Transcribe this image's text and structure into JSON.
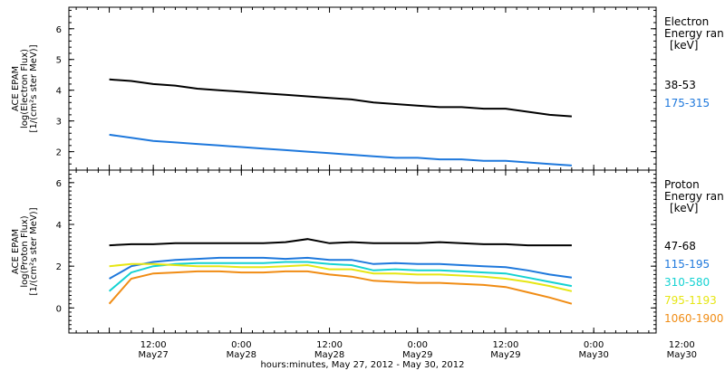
{
  "chart_data": [
    {
      "type": "line",
      "ylabel_lines": [
        "ACE EPAM",
        "log(Electron Flux)",
        "[1/(cm²s ster MeV)]"
      ],
      "ylim": [
        1.4,
        6.7
      ],
      "yticks": [
        2,
        3,
        4,
        5,
        6
      ],
      "legend_title": [
        "Electron",
        "Energy ran",
        "[keV]"
      ],
      "series": [
        {
          "name": "38-53",
          "color": "#000000",
          "x": [
            0,
            6,
            12,
            18,
            24,
            30,
            36,
            42,
            48,
            54,
            60,
            66,
            72,
            78,
            84,
            90,
            96,
            102,
            108,
            114,
            120,
            126
          ],
          "y": [
            4.35,
            4.3,
            4.2,
            4.15,
            4.05,
            4.0,
            3.95,
            3.9,
            3.85,
            3.8,
            3.75,
            3.7,
            3.6,
            3.55,
            3.5,
            3.45,
            3.45,
            3.4,
            3.4,
            3.3,
            3.2,
            3.15
          ]
        },
        {
          "name": "175-315",
          "color": "#1e78dc",
          "x": [
            0,
            6,
            12,
            18,
            24,
            30,
            36,
            42,
            48,
            54,
            60,
            66,
            72,
            78,
            84,
            90,
            96,
            102,
            108,
            114,
            120,
            126
          ],
          "y": [
            2.55,
            2.45,
            2.35,
            2.3,
            2.25,
            2.2,
            2.15,
            2.1,
            2.05,
            2.0,
            1.95,
            1.9,
            1.85,
            1.8,
            1.8,
            1.75,
            1.75,
            1.7,
            1.7,
            1.65,
            1.6,
            1.55
          ]
        }
      ]
    },
    {
      "type": "line",
      "ylabel_lines": [
        "ACE EPAM",
        "log(Proton Flux)",
        "[1/(cm²s ster MeV)]"
      ],
      "ylim": [
        -1.2,
        6.6
      ],
      "yticks": [
        0,
        2,
        4,
        6
      ],
      "legend_title": [
        "Proton",
        "Energy ran",
        "[keV]"
      ],
      "series": [
        {
          "name": "47-68",
          "color": "#000000",
          "x": [
            0,
            6,
            12,
            18,
            24,
            30,
            36,
            42,
            48,
            54,
            60,
            66,
            72,
            78,
            84,
            90,
            96,
            102,
            108,
            114,
            120,
            126
          ],
          "y": [
            3.0,
            3.05,
            3.05,
            3.1,
            3.1,
            3.1,
            3.1,
            3.1,
            3.15,
            3.3,
            3.1,
            3.15,
            3.1,
            3.1,
            3.1,
            3.15,
            3.1,
            3.05,
            3.05,
            3.0,
            3.0,
            3.0
          ]
        },
        {
          "name": "115-195",
          "color": "#1e78dc",
          "x": [
            0,
            6,
            12,
            18,
            24,
            30,
            36,
            42,
            48,
            54,
            60,
            66,
            72,
            78,
            84,
            90,
            96,
            102,
            108,
            114,
            120,
            126
          ],
          "y": [
            1.4,
            2.0,
            2.2,
            2.3,
            2.35,
            2.4,
            2.4,
            2.4,
            2.35,
            2.4,
            2.3,
            2.3,
            2.1,
            2.15,
            2.1,
            2.1,
            2.05,
            2.0,
            1.95,
            1.8,
            1.6,
            1.45
          ]
        },
        {
          "name": "310-580",
          "color": "#14d2d2",
          "x": [
            0,
            6,
            12,
            18,
            24,
            30,
            36,
            42,
            48,
            54,
            60,
            66,
            72,
            78,
            84,
            90,
            96,
            102,
            108,
            114,
            120,
            126
          ],
          "y": [
            0.8,
            1.7,
            2.0,
            2.1,
            2.15,
            2.15,
            2.15,
            2.15,
            2.2,
            2.2,
            2.1,
            2.05,
            1.8,
            1.85,
            1.8,
            1.8,
            1.75,
            1.7,
            1.65,
            1.45,
            1.25,
            1.05
          ]
        },
        {
          "name": "795-1193",
          "color": "#e6e614",
          "x": [
            0,
            6,
            12,
            18,
            24,
            30,
            36,
            42,
            48,
            54,
            60,
            66,
            72,
            78,
            84,
            90,
            96,
            102,
            108,
            114,
            120,
            126
          ],
          "y": [
            2.0,
            2.1,
            2.1,
            2.05,
            2.0,
            2.0,
            1.95,
            1.95,
            2.0,
            2.05,
            1.85,
            1.85,
            1.65,
            1.65,
            1.6,
            1.6,
            1.55,
            1.5,
            1.4,
            1.25,
            1.05,
            0.8
          ]
        },
        {
          "name": "1060-1900",
          "color": "#f08c14",
          "x": [
            0,
            6,
            12,
            18,
            24,
            30,
            36,
            42,
            48,
            54,
            60,
            66,
            72,
            78,
            84,
            90,
            96,
            102,
            108,
            114,
            120,
            126
          ],
          "y": [
            0.2,
            1.4,
            1.65,
            1.7,
            1.75,
            1.75,
            1.7,
            1.7,
            1.75,
            1.75,
            1.6,
            1.5,
            1.3,
            1.25,
            1.2,
            1.2,
            1.15,
            1.1,
            1.0,
            0.75,
            0.5,
            0.2
          ]
        }
      ]
    }
  ],
  "x_axis": {
    "xlim": [
      -11,
      149
    ],
    "ticks": [
      {
        "x": 0,
        "time": "",
        "date": ""
      },
      {
        "x": 12,
        "time": "12:00",
        "date": "May27"
      },
      {
        "x": 36,
        "time": "0:00",
        "date": "May28"
      },
      {
        "x": 60,
        "time": "12:00",
        "date": "May28"
      },
      {
        "x": 84,
        "time": "0:00",
        "date": "May29"
      },
      {
        "x": 108,
        "time": "12:00",
        "date": "May29"
      },
      {
        "x": 132,
        "time": "0:00",
        "date": "May30"
      },
      {
        "x": 156,
        "time": "12:00",
        "date": "May30"
      }
    ],
    "xlabel": "hours:minutes, May 27, 2012 - May 30, 2012"
  }
}
